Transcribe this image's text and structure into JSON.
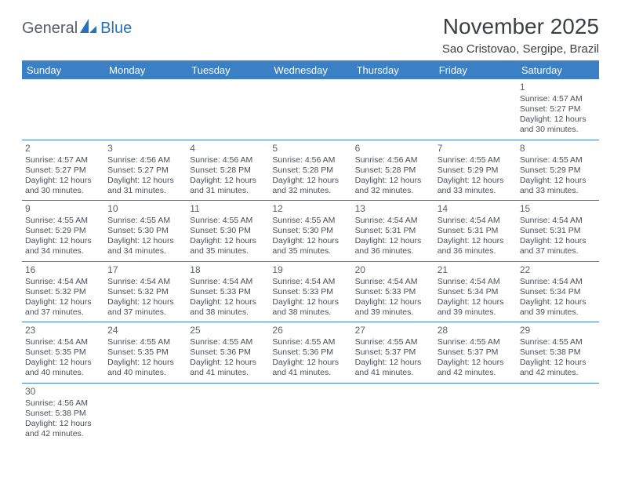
{
  "logo": {
    "text1": "General",
    "text2": "Blue"
  },
  "title": "November 2025",
  "location": "Sao Cristovao, Sergipe, Brazil",
  "colors": {
    "header_bg": "#3b7fc4",
    "header_text": "#ffffff",
    "cell_border": "#3b7fc4",
    "text": "#4a4f55",
    "logo_gray": "#55606a",
    "logo_blue": "#2a71b8"
  },
  "weekdays": [
    "Sunday",
    "Monday",
    "Tuesday",
    "Wednesday",
    "Thursday",
    "Friday",
    "Saturday"
  ],
  "weeks": [
    [
      null,
      null,
      null,
      null,
      null,
      null,
      {
        "n": "1",
        "sr": "Sunrise: 4:57 AM",
        "ss": "Sunset: 5:27 PM",
        "d1": "Daylight: 12 hours",
        "d2": "and 30 minutes."
      }
    ],
    [
      {
        "n": "2",
        "sr": "Sunrise: 4:57 AM",
        "ss": "Sunset: 5:27 PM",
        "d1": "Daylight: 12 hours",
        "d2": "and 30 minutes."
      },
      {
        "n": "3",
        "sr": "Sunrise: 4:56 AM",
        "ss": "Sunset: 5:27 PM",
        "d1": "Daylight: 12 hours",
        "d2": "and 31 minutes."
      },
      {
        "n": "4",
        "sr": "Sunrise: 4:56 AM",
        "ss": "Sunset: 5:28 PM",
        "d1": "Daylight: 12 hours",
        "d2": "and 31 minutes."
      },
      {
        "n": "5",
        "sr": "Sunrise: 4:56 AM",
        "ss": "Sunset: 5:28 PM",
        "d1": "Daylight: 12 hours",
        "d2": "and 32 minutes."
      },
      {
        "n": "6",
        "sr": "Sunrise: 4:56 AM",
        "ss": "Sunset: 5:28 PM",
        "d1": "Daylight: 12 hours",
        "d2": "and 32 minutes."
      },
      {
        "n": "7",
        "sr": "Sunrise: 4:55 AM",
        "ss": "Sunset: 5:29 PM",
        "d1": "Daylight: 12 hours",
        "d2": "and 33 minutes."
      },
      {
        "n": "8",
        "sr": "Sunrise: 4:55 AM",
        "ss": "Sunset: 5:29 PM",
        "d1": "Daylight: 12 hours",
        "d2": "and 33 minutes."
      }
    ],
    [
      {
        "n": "9",
        "sr": "Sunrise: 4:55 AM",
        "ss": "Sunset: 5:29 PM",
        "d1": "Daylight: 12 hours",
        "d2": "and 34 minutes."
      },
      {
        "n": "10",
        "sr": "Sunrise: 4:55 AM",
        "ss": "Sunset: 5:30 PM",
        "d1": "Daylight: 12 hours",
        "d2": "and 34 minutes."
      },
      {
        "n": "11",
        "sr": "Sunrise: 4:55 AM",
        "ss": "Sunset: 5:30 PM",
        "d1": "Daylight: 12 hours",
        "d2": "and 35 minutes."
      },
      {
        "n": "12",
        "sr": "Sunrise: 4:55 AM",
        "ss": "Sunset: 5:30 PM",
        "d1": "Daylight: 12 hours",
        "d2": "and 35 minutes."
      },
      {
        "n": "13",
        "sr": "Sunrise: 4:54 AM",
        "ss": "Sunset: 5:31 PM",
        "d1": "Daylight: 12 hours",
        "d2": "and 36 minutes."
      },
      {
        "n": "14",
        "sr": "Sunrise: 4:54 AM",
        "ss": "Sunset: 5:31 PM",
        "d1": "Daylight: 12 hours",
        "d2": "and 36 minutes."
      },
      {
        "n": "15",
        "sr": "Sunrise: 4:54 AM",
        "ss": "Sunset: 5:31 PM",
        "d1": "Daylight: 12 hours",
        "d2": "and 37 minutes."
      }
    ],
    [
      {
        "n": "16",
        "sr": "Sunrise: 4:54 AM",
        "ss": "Sunset: 5:32 PM",
        "d1": "Daylight: 12 hours",
        "d2": "and 37 minutes."
      },
      {
        "n": "17",
        "sr": "Sunrise: 4:54 AM",
        "ss": "Sunset: 5:32 PM",
        "d1": "Daylight: 12 hours",
        "d2": "and 37 minutes."
      },
      {
        "n": "18",
        "sr": "Sunrise: 4:54 AM",
        "ss": "Sunset: 5:33 PM",
        "d1": "Daylight: 12 hours",
        "d2": "and 38 minutes."
      },
      {
        "n": "19",
        "sr": "Sunrise: 4:54 AM",
        "ss": "Sunset: 5:33 PM",
        "d1": "Daylight: 12 hours",
        "d2": "and 38 minutes."
      },
      {
        "n": "20",
        "sr": "Sunrise: 4:54 AM",
        "ss": "Sunset: 5:33 PM",
        "d1": "Daylight: 12 hours",
        "d2": "and 39 minutes."
      },
      {
        "n": "21",
        "sr": "Sunrise: 4:54 AM",
        "ss": "Sunset: 5:34 PM",
        "d1": "Daylight: 12 hours",
        "d2": "and 39 minutes."
      },
      {
        "n": "22",
        "sr": "Sunrise: 4:54 AM",
        "ss": "Sunset: 5:34 PM",
        "d1": "Daylight: 12 hours",
        "d2": "and 39 minutes."
      }
    ],
    [
      {
        "n": "23",
        "sr": "Sunrise: 4:54 AM",
        "ss": "Sunset: 5:35 PM",
        "d1": "Daylight: 12 hours",
        "d2": "and 40 minutes."
      },
      {
        "n": "24",
        "sr": "Sunrise: 4:55 AM",
        "ss": "Sunset: 5:35 PM",
        "d1": "Daylight: 12 hours",
        "d2": "and 40 minutes."
      },
      {
        "n": "25",
        "sr": "Sunrise: 4:55 AM",
        "ss": "Sunset: 5:36 PM",
        "d1": "Daylight: 12 hours",
        "d2": "and 41 minutes."
      },
      {
        "n": "26",
        "sr": "Sunrise: 4:55 AM",
        "ss": "Sunset: 5:36 PM",
        "d1": "Daylight: 12 hours",
        "d2": "and 41 minutes."
      },
      {
        "n": "27",
        "sr": "Sunrise: 4:55 AM",
        "ss": "Sunset: 5:37 PM",
        "d1": "Daylight: 12 hours",
        "d2": "and 41 minutes."
      },
      {
        "n": "28",
        "sr": "Sunrise: 4:55 AM",
        "ss": "Sunset: 5:37 PM",
        "d1": "Daylight: 12 hours",
        "d2": "and 42 minutes."
      },
      {
        "n": "29",
        "sr": "Sunrise: 4:55 AM",
        "ss": "Sunset: 5:38 PM",
        "d1": "Daylight: 12 hours",
        "d2": "and 42 minutes."
      }
    ],
    [
      {
        "n": "30",
        "sr": "Sunrise: 4:56 AM",
        "ss": "Sunset: 5:38 PM",
        "d1": "Daylight: 12 hours",
        "d2": "and 42 minutes."
      },
      null,
      null,
      null,
      null,
      null,
      null
    ]
  ]
}
